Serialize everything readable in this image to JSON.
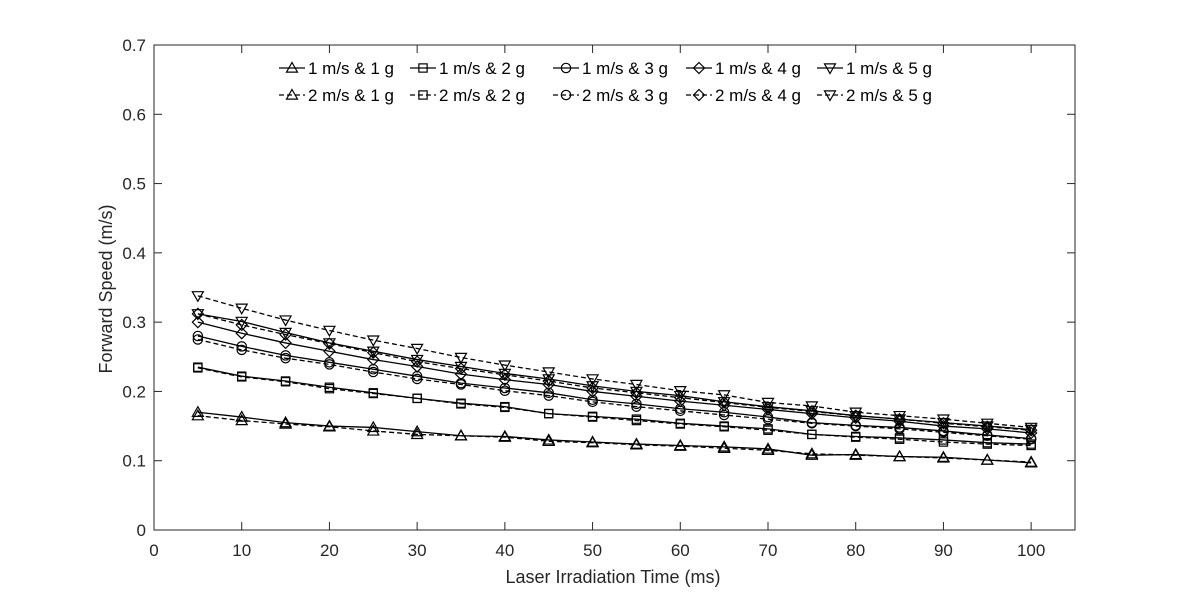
{
  "chart_data": {
    "type": "line",
    "xlabel": "Laser Irradiation Time (ms)",
    "ylabel": "Forward Speed (m/s)",
    "xlim": [
      0,
      105
    ],
    "ylim": [
      0,
      0.7
    ],
    "x_ticks": [
      "0",
      "10",
      "20",
      "30",
      "40",
      "50",
      "60",
      "70",
      "80",
      "90",
      "100"
    ],
    "y_ticks": [
      "0",
      "0.1",
      "0.2",
      "0.3",
      "0.4",
      "0.5",
      "0.6",
      "0.7"
    ],
    "grid": false,
    "legend_position": "top-center",
    "x": [
      5,
      10,
      15,
      20,
      25,
      30,
      35,
      40,
      45,
      50,
      55,
      60,
      65,
      70,
      75,
      80,
      85,
      90,
      95,
      100
    ],
    "series": [
      {
        "name": "1 m/s & 1 g",
        "marker": "triangle-up",
        "dash": "solid",
        "values": [
          0.17,
          0.163,
          0.155,
          0.15,
          0.148,
          0.142,
          0.136,
          0.135,
          0.13,
          0.127,
          0.124,
          0.122,
          0.12,
          0.117,
          0.108,
          0.109,
          0.106,
          0.105,
          0.101,
          0.097
        ]
      },
      {
        "name": "1 m/s & 2 g",
        "marker": "square",
        "dash": "solid",
        "values": [
          0.235,
          0.222,
          0.215,
          0.206,
          0.198,
          0.19,
          0.183,
          0.178,
          0.168,
          0.164,
          0.16,
          0.154,
          0.15,
          0.146,
          0.138,
          0.135,
          0.133,
          0.13,
          0.126,
          0.124
        ]
      },
      {
        "name": "1 m/s & 3 g",
        "marker": "circle",
        "dash": "solid",
        "values": [
          0.28,
          0.265,
          0.252,
          0.242,
          0.232,
          0.222,
          0.212,
          0.205,
          0.198,
          0.188,
          0.182,
          0.175,
          0.17,
          0.163,
          0.155,
          0.151,
          0.148,
          0.143,
          0.137,
          0.132
        ]
      },
      {
        "name": "1 m/s & 4 g",
        "marker": "diamond",
        "dash": "solid",
        "values": [
          0.3,
          0.284,
          0.27,
          0.258,
          0.246,
          0.236,
          0.225,
          0.217,
          0.21,
          0.2,
          0.193,
          0.186,
          0.18,
          0.174,
          0.168,
          0.162,
          0.157,
          0.15,
          0.146,
          0.14
        ]
      },
      {
        "name": "1 m/s & 5 g",
        "marker": "triangle-down",
        "dash": "solid",
        "values": [
          0.312,
          0.301,
          0.285,
          0.27,
          0.258,
          0.246,
          0.236,
          0.226,
          0.218,
          0.208,
          0.2,
          0.194,
          0.185,
          0.178,
          0.172,
          0.165,
          0.16,
          0.155,
          0.15,
          0.145
        ]
      },
      {
        "name": "2 m/s & 1 g",
        "marker": "triangle-up",
        "dash": "dashed",
        "values": [
          0.165,
          0.158,
          0.153,
          0.149,
          0.143,
          0.138,
          0.136,
          0.134,
          0.128,
          0.126,
          0.123,
          0.121,
          0.118,
          0.115,
          0.11,
          0.108,
          0.106,
          0.104,
          0.101,
          0.098
        ]
      },
      {
        "name": "2 m/s &  2 g",
        "marker": "square",
        "dash": "dashed",
        "values": [
          0.234,
          0.221,
          0.214,
          0.204,
          0.197,
          0.19,
          0.182,
          0.177,
          0.168,
          0.163,
          0.158,
          0.153,
          0.149,
          0.144,
          0.138,
          0.134,
          0.131,
          0.127,
          0.124,
          0.122
        ]
      },
      {
        "name": "2 m/s & 3 g",
        "marker": "circle",
        "dash": "dashed",
        "values": [
          0.275,
          0.26,
          0.248,
          0.239,
          0.228,
          0.218,
          0.21,
          0.201,
          0.194,
          0.185,
          0.178,
          0.172,
          0.166,
          0.16,
          0.154,
          0.15,
          0.146,
          0.141,
          0.136,
          0.131
        ]
      },
      {
        "name": "2 m/s &  4 g",
        "marker": "diamond",
        "dash": "dashed",
        "values": [
          0.312,
          0.296,
          0.282,
          0.269,
          0.256,
          0.243,
          0.233,
          0.224,
          0.215,
          0.205,
          0.198,
          0.191,
          0.184,
          0.177,
          0.171,
          0.165,
          0.16,
          0.154,
          0.149,
          0.144
        ]
      },
      {
        "name": "2 m/s & 5 g",
        "marker": "triangle-down",
        "dash": "dashed",
        "values": [
          0.338,
          0.32,
          0.303,
          0.288,
          0.274,
          0.262,
          0.249,
          0.238,
          0.228,
          0.218,
          0.21,
          0.201,
          0.195,
          0.184,
          0.179,
          0.17,
          0.165,
          0.16,
          0.154,
          0.148
        ]
      }
    ]
  }
}
